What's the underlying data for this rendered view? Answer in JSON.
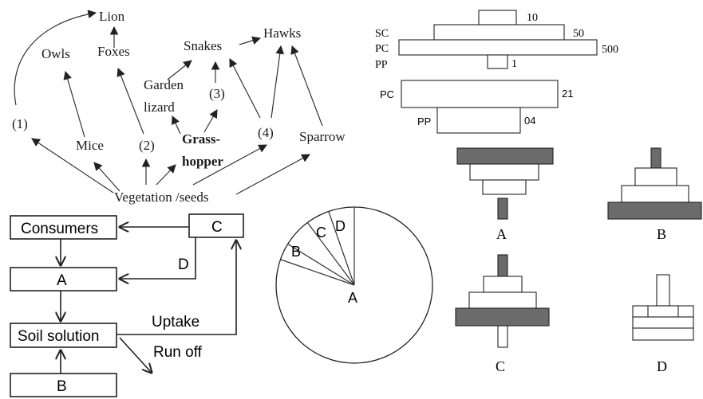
{
  "food_web": {
    "lion": "Lion",
    "owls": "Owls",
    "foxes": "Foxes",
    "snakes": "Snakes",
    "hawks": "Hawks",
    "garden_lizard_1": "Garden",
    "garden_lizard_2": "lizard",
    "mice": "Mice",
    "grasshopper_1": "Grass-",
    "grasshopper_2": "hopper",
    "sparrow": "Sparrow",
    "vegetation": "Vegetation /seeds",
    "label_1": "(1)",
    "label_2": "(2)",
    "label_3": "(3)",
    "label_4": "(4)"
  },
  "pyramid_numbers": {
    "sc": {
      "label": "SC",
      "value": "50"
    },
    "top_value": "10",
    "pc": {
      "label": "PC",
      "value": "500"
    },
    "pp": {
      "label": "PP",
      "value": "1"
    }
  },
  "pyramid_biomass": {
    "pc": {
      "label": "PC",
      "value": "21"
    },
    "pp": {
      "label": "PP",
      "value": "04"
    }
  },
  "nutrient_cycle": {
    "consumers": "Consumers",
    "c": "C",
    "d": "D",
    "a": "A",
    "soil_solution": "Soil solution",
    "uptake": "Uptake",
    "run_off": "Run off",
    "b": "B"
  },
  "pie": {
    "labels": {
      "a": "A",
      "b": "B",
      "c": "C",
      "d": "D"
    }
  },
  "pyramid_options": {
    "a": "A",
    "b": "B",
    "c": "C",
    "d": "D"
  }
}
